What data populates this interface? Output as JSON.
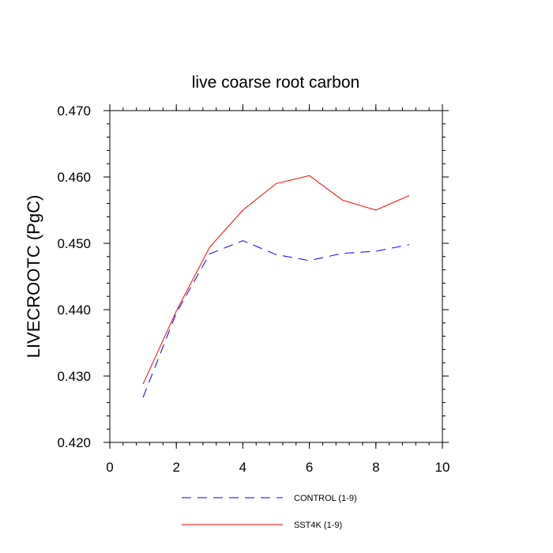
{
  "chart_data": {
    "type": "line",
    "title": "live coarse root carbon",
    "xlabel": "",
    "ylabel": "LIVECROOTC  (PgC)",
    "xlim": [
      0,
      10
    ],
    "ylim": [
      0.42,
      0.47
    ],
    "xticks": [
      0,
      2,
      4,
      6,
      8,
      10
    ],
    "xtick_labels": [
      "0",
      "2",
      "4",
      "6",
      "8",
      "10"
    ],
    "yticks": [
      0.42,
      0.43,
      0.44,
      0.45,
      0.46,
      0.47
    ],
    "ytick_labels": [
      "0.420",
      "0.430",
      "0.440",
      "0.450",
      "0.460",
      "0.470"
    ],
    "grid": false,
    "legend_position": "bottom",
    "x": [
      1,
      2,
      3,
      4,
      5,
      6,
      7,
      8,
      9
    ],
    "series": [
      {
        "name": "CONTROL (1-9)",
        "color": "#0000ff",
        "line_style": "dashed",
        "values": [
          0.4268,
          0.4395,
          0.4484,
          0.4504,
          0.4483,
          0.4474,
          0.4485,
          0.4488,
          0.4498
        ]
      },
      {
        "name": "SST4K (1-9)",
        "color": "#ff0000",
        "line_style": "solid",
        "values": [
          0.4288,
          0.4398,
          0.4494,
          0.455,
          0.459,
          0.4602,
          0.4565,
          0.455,
          0.4572
        ]
      }
    ]
  }
}
